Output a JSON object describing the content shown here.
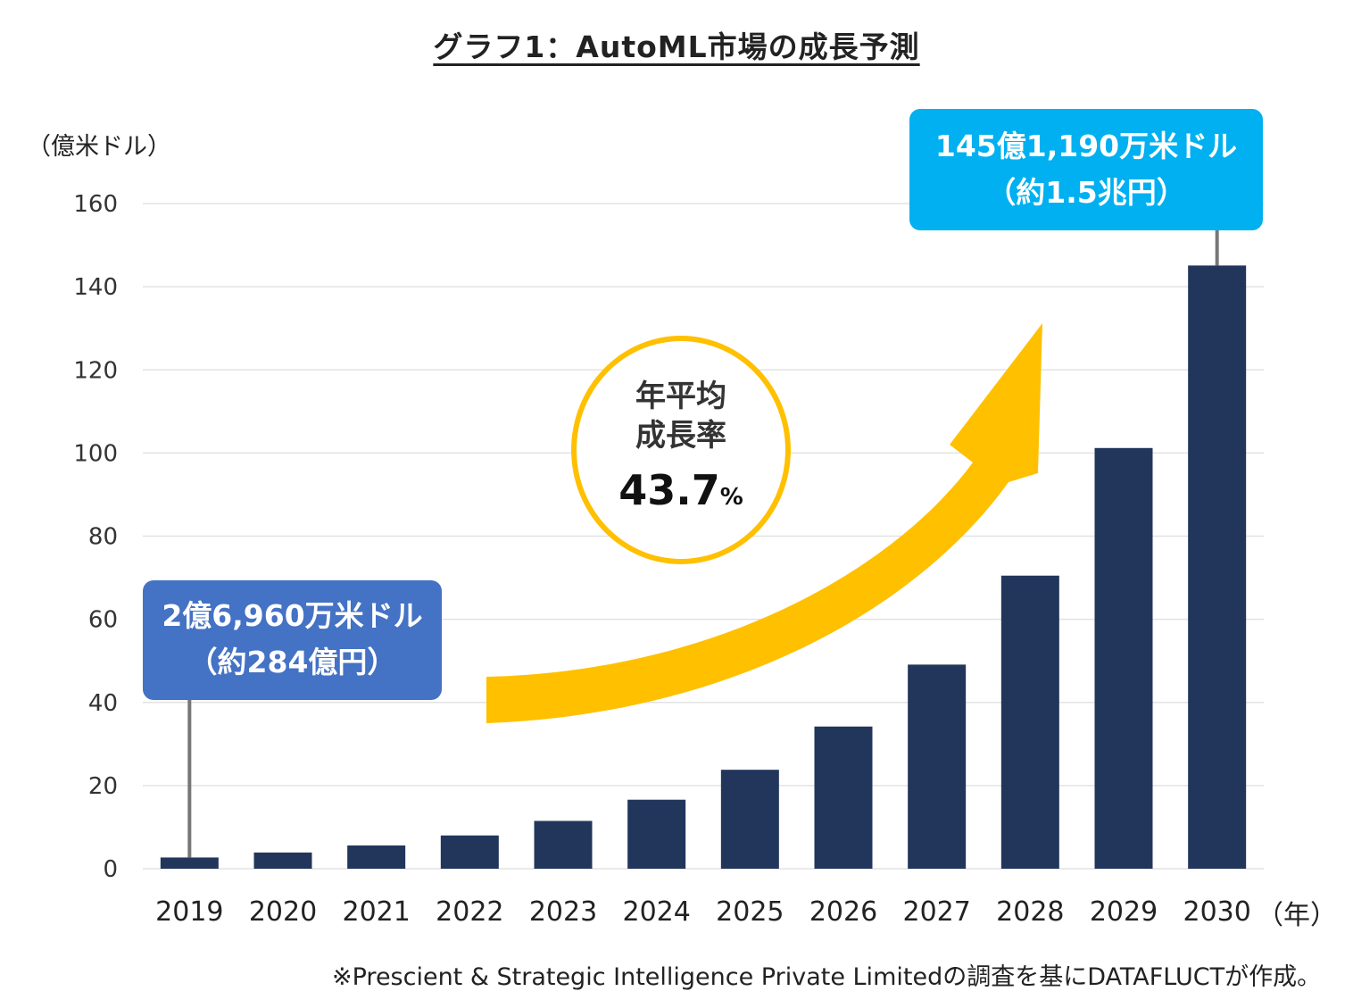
{
  "title": "グラフ1：AutoML市場の成長予測",
  "y_unit": "（億米ドル）",
  "x_unit": "（年）",
  "callouts": {
    "start_line1": "2億6,960万米ドル",
    "start_line2": "（約284億円）",
    "end_line1": "145億1,190万米ドル",
    "end_line2": "（約1.5兆円）"
  },
  "cagr": {
    "line1": "年平均",
    "line2": "成長率",
    "value": "43.7",
    "percent": "%"
  },
  "source": "※Prescient & Strategic Intelligence Private Limitedの調査を基にDATAFLUCTが作成。",
  "colors": {
    "bar": "#22365c",
    "start_callout": "#4472c4",
    "end_callout": "#00b0f0",
    "arrow": "#ffc000"
  },
  "chart_data": {
    "type": "bar",
    "categories": [
      "2019",
      "2020",
      "2021",
      "2022",
      "2023",
      "2024",
      "2025",
      "2026",
      "2027",
      "2028",
      "2029",
      "2030"
    ],
    "values": [
      2.7,
      3.9,
      5.6,
      8.0,
      11.5,
      16.6,
      23.8,
      34.2,
      49.1,
      70.5,
      101.2,
      145.1
    ],
    "ylim": [
      0,
      160
    ],
    "yticks": [
      0,
      20,
      40,
      60,
      80,
      100,
      120,
      140,
      160
    ],
    "grid": true,
    "legend": "none"
  }
}
